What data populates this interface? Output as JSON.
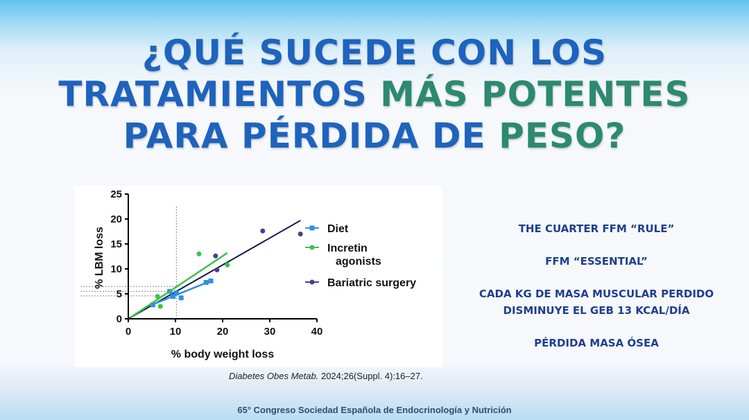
{
  "title": {
    "line1": "¿QUÉ SUCEDE CON LOS",
    "line2_plain": "TRATAMIENTOS ",
    "line2_highlight": "MÁS POTENTES",
    "line3_plain": "PARA PÉRDIDA DE ",
    "line3_highlight": "PESO?"
  },
  "colors": {
    "title_blue": "#1e63bd",
    "title_green": "#2c8a6e",
    "notes_blue": "#1c3f8f",
    "diet": "#2f8fe0",
    "incretin": "#3cc24a",
    "bariatric": "#4a3e8c",
    "overall_line": "#141a4a"
  },
  "chart_data": {
    "type": "scatter",
    "xlabel": "% body weight loss",
    "ylabel": "% LBM loss",
    "xlim": [
      0,
      40
    ],
    "ylim": [
      0,
      25
    ],
    "xticks": [
      0,
      10,
      20,
      30,
      40
    ],
    "yticks": [
      0,
      5,
      10,
      15,
      20,
      25
    ],
    "legend_position": "right",
    "series": [
      {
        "name": "Diet",
        "marker": "square",
        "points": [
          [
            5.2,
            2.8
          ],
          [
            8.8,
            5.5
          ],
          [
            9.5,
            4.5
          ],
          [
            10.2,
            5.2
          ],
          [
            11.2,
            4.2
          ],
          [
            16.5,
            7.3
          ],
          [
            17.5,
            7.6
          ]
        ],
        "fit": [
          [
            5,
            2.8
          ],
          [
            17.5,
            7.6
          ]
        ]
      },
      {
        "name": "Incretin agonists",
        "legend_lines": [
          "Incretin",
          "agonists"
        ],
        "marker": "circle",
        "points": [
          [
            6.2,
            4.5
          ],
          [
            6.8,
            2.5
          ],
          [
            15,
            13
          ],
          [
            21,
            10.8
          ]
        ],
        "fit": [
          [
            0.5,
            0.3
          ],
          [
            21,
            13.2
          ]
        ]
      },
      {
        "name": "Bariatric surgery",
        "marker": "circle",
        "points": [
          [
            18.8,
            9.8
          ],
          [
            18.5,
            12.6
          ],
          [
            28.5,
            17.6
          ],
          [
            36.5,
            17
          ]
        ],
        "fit": null
      }
    ],
    "overall_fit": [
      [
        0,
        0
      ],
      [
        36.5,
        19.7
      ]
    ],
    "reference_lines": {
      "vertical_x": 10.2,
      "horizontal_y": [
        4.6,
        5.5,
        6.5
      ]
    }
  },
  "citation": {
    "journal": "Diabetes Obes Metab.",
    "details": " 2024;26(Suppl. 4):16–27."
  },
  "notes": [
    "THE CUARTER FFM “RULE”",
    "FFM “ESSENTIAL”",
    "CADA KG DE MASA MUSCULAR PERDIDO DISMINUYE EL GEB 13 KCAL/DÍA",
    "PÉRDIDA MASA ÓSEA"
  ],
  "footer": "65° Congreso Sociedad Española de Endocrinología y Nutrición"
}
